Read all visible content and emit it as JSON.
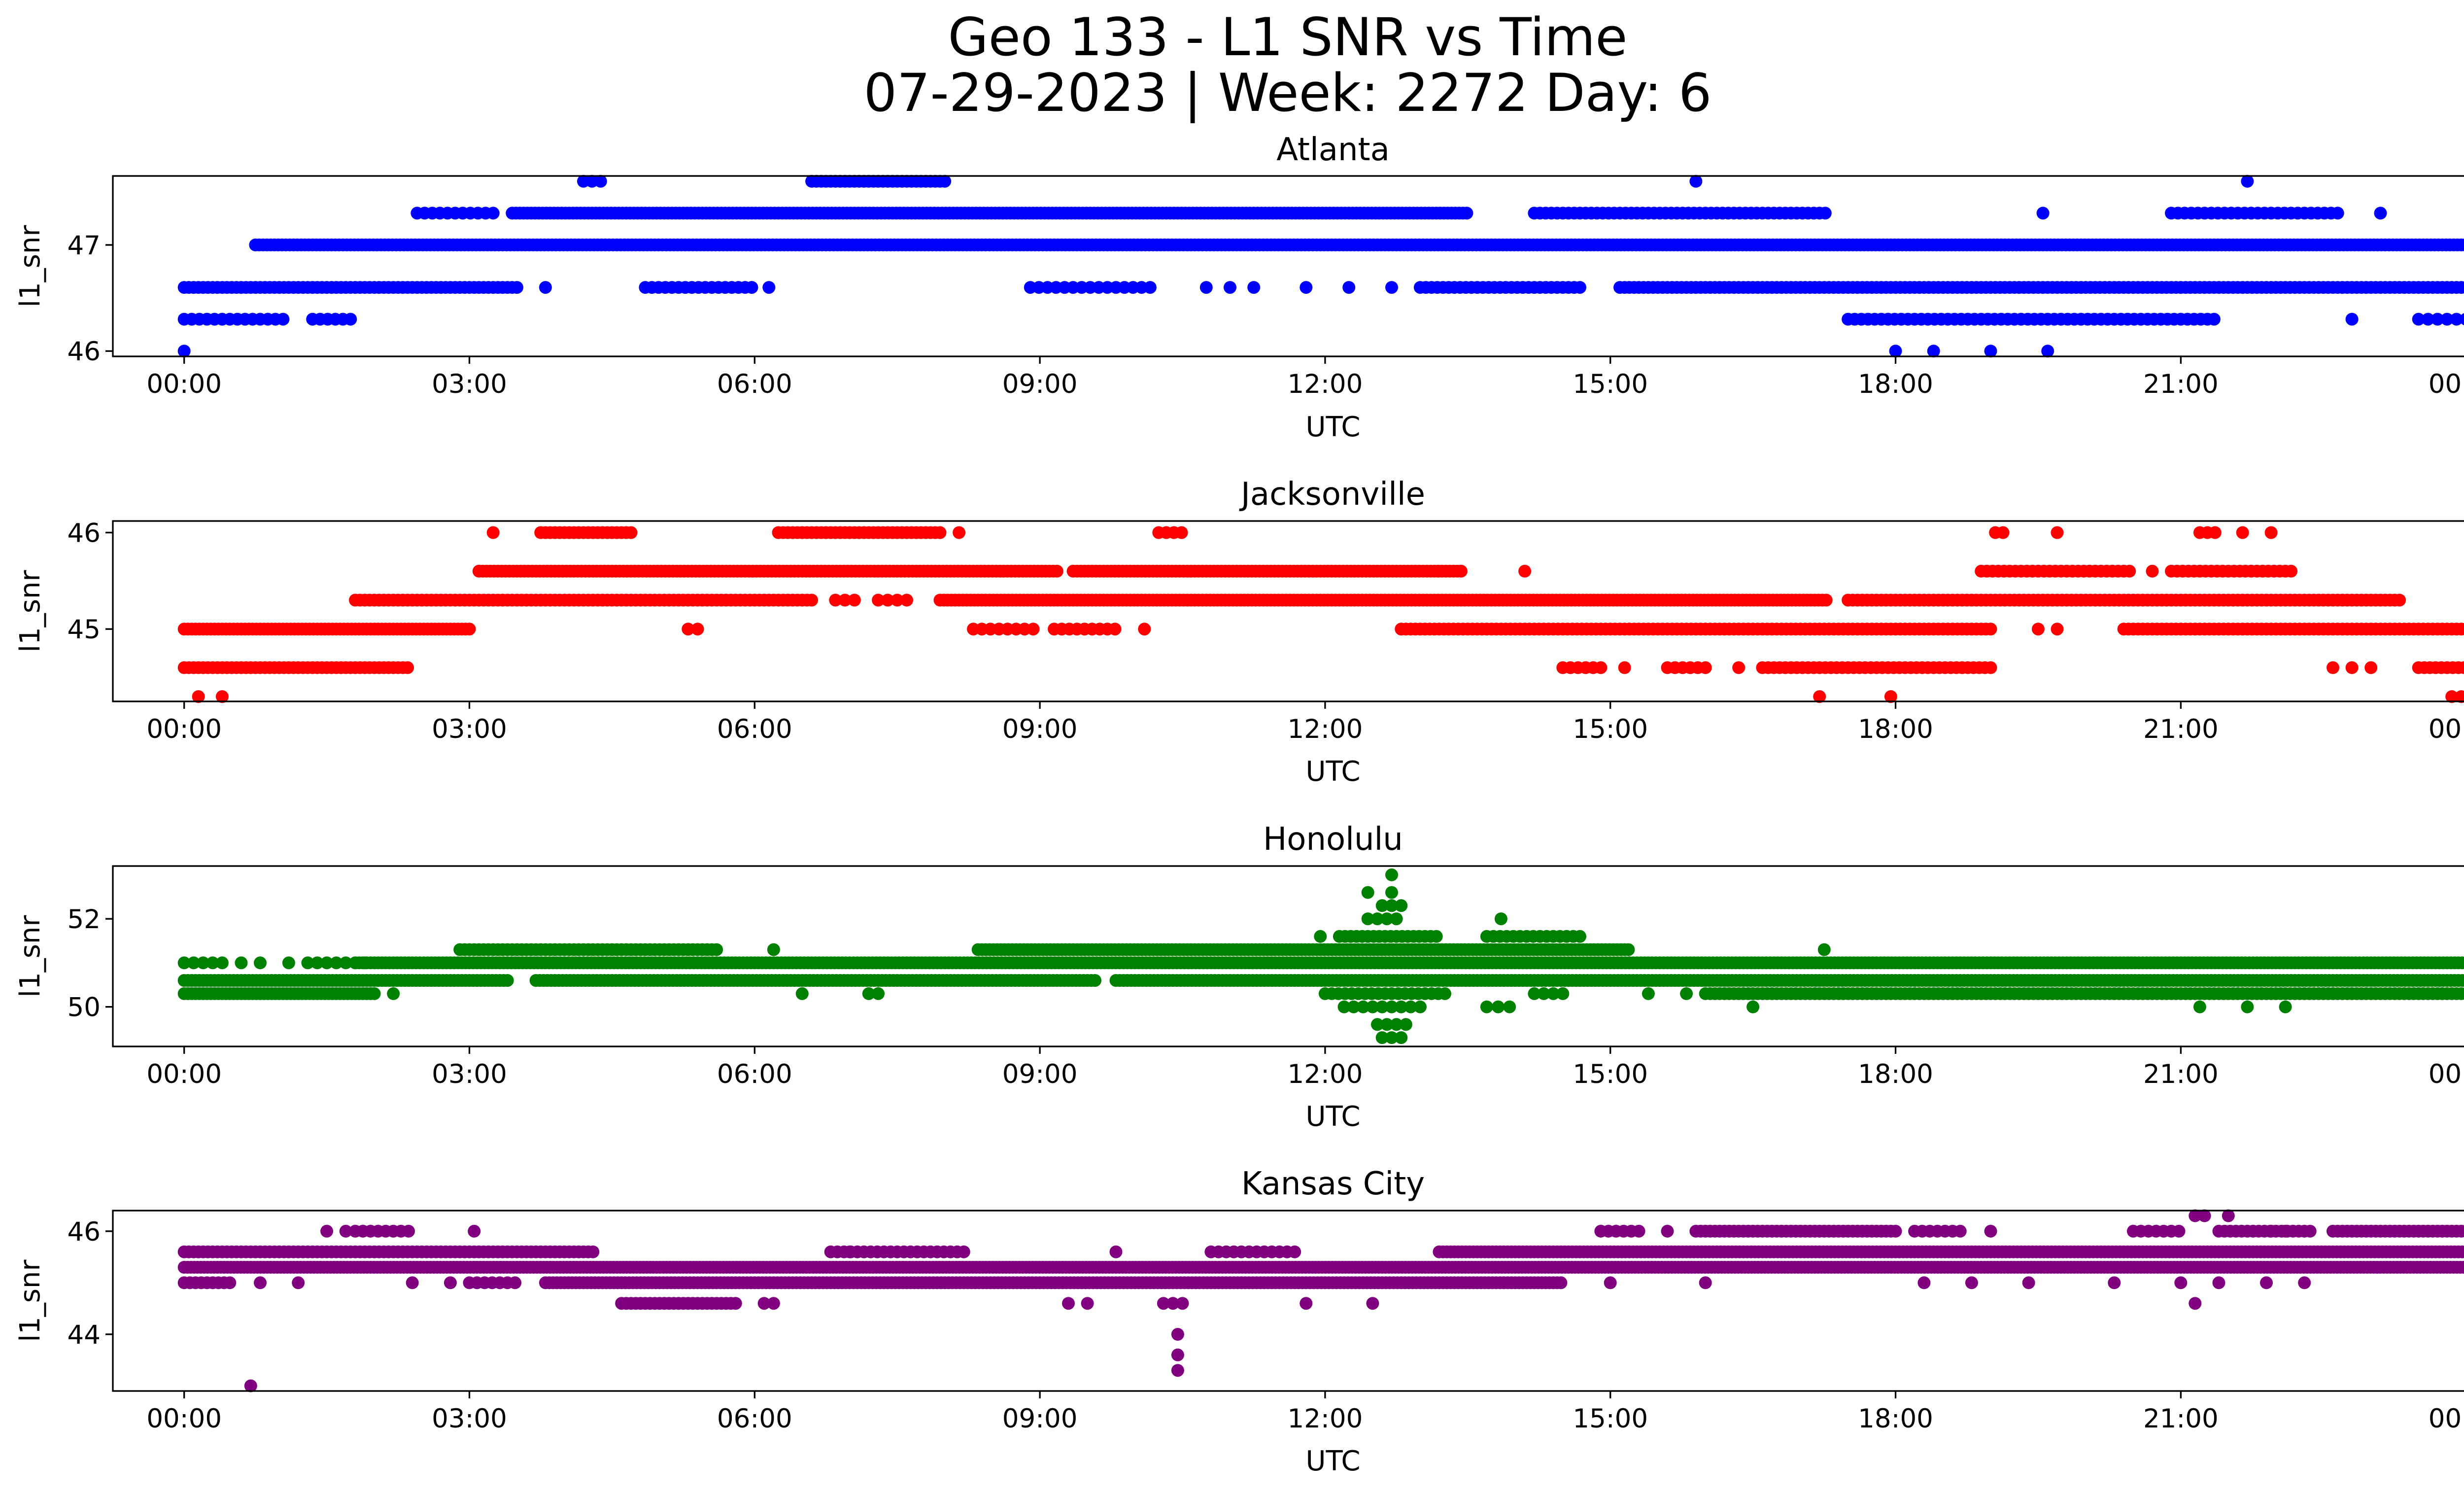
{
  "figure": {
    "title_line1": "Geo 133 - L1 SNR vs Time",
    "title_line2": "07-29-2023 | Week: 2272 Day: 6"
  },
  "chart_data": [
    {
      "type": "scatter",
      "title": "Atlanta",
      "xlabel": "UTC",
      "ylabel": "l1_snr",
      "color": "#0000ff",
      "xlim": [
        "23:15",
        "24:55"
      ],
      "ylim": [
        45.95,
        47.65
      ],
      "yticks": [
        46,
        47
      ],
      "ytick_labels": [
        "46",
        "47"
      ],
      "xtick_labels": [
        "00:00",
        "03:00",
        "06:00",
        "09:00",
        "12:00",
        "15:00",
        "18:00",
        "21:00",
        "00:00"
      ],
      "levels": [
        {
          "y": 46.0,
          "spans": [
            [
              0.0,
              0.1,
              0.15
            ]
          ],
          "points": [
            18.0,
            18.4,
            19.0,
            19.6
          ]
        },
        {
          "y": 46.3,
          "spans": [
            [
              0.0,
              1.1,
              0.08
            ],
            [
              1.35,
              1.8,
              0.08
            ],
            [
              17.5,
              21.4,
              0.07
            ],
            [
              23.5,
              24.0,
              0.1
            ]
          ],
          "points": [
            22.8
          ]
        },
        {
          "y": 46.6,
          "spans": [
            [
              0.0,
              3.5,
              0.05
            ],
            [
              4.85,
              6.0,
              0.07
            ],
            [
              8.9,
              10.2,
              0.09
            ],
            [
              13.0,
              14.7,
              0.06
            ],
            [
              15.1,
              24.0,
              0.05
            ]
          ],
          "points": [
            3.8,
            6.15,
            10.75,
            11.0,
            11.25,
            11.8,
            12.25,
            12.7
          ]
        },
        {
          "y": 47.0,
          "spans": [
            [
              0.75,
              24.0,
              0.04
            ]
          ],
          "points": []
        },
        {
          "y": 47.3,
          "spans": [
            [
              2.45,
              3.3,
              0.08
            ],
            [
              3.45,
              13.5,
              0.04
            ],
            [
              14.2,
              17.3,
              0.06
            ],
            [
              20.9,
              22.7,
              0.07
            ]
          ],
          "points": [
            19.55,
            23.1
          ]
        },
        {
          "y": 47.6,
          "spans": [
            [
              4.2,
              4.45,
              0.09
            ],
            [
              6.6,
              8.0,
              0.05
            ]
          ],
          "points": [
            15.9,
            21.7
          ]
        }
      ]
    },
    {
      "type": "scatter",
      "title": "Jacksonville",
      "xlabel": "UTC",
      "ylabel": "l1_snr",
      "color": "#ff0000",
      "xlim": [
        "23:15",
        "24:55"
      ],
      "ylim": [
        44.25,
        46.12
      ],
      "yticks": [
        45,
        46
      ],
      "ytick_labels": [
        "45",
        "46"
      ],
      "xtick_labels": [
        "00:00",
        "03:00",
        "06:00",
        "09:00",
        "12:00",
        "15:00",
        "18:00",
        "21:00",
        "00:00"
      ],
      "levels": [
        {
          "y": 44.3,
          "spans": [
            [
              23.85,
              23.95,
              0.1
            ]
          ],
          "points": [
            0.15,
            0.4,
            17.2,
            17.95
          ]
        },
        {
          "y": 44.6,
          "spans": [
            [
              0.0,
              2.35,
              0.05
            ],
            [
              14.5,
              14.9,
              0.08
            ],
            [
              15.6,
              16.0,
              0.08
            ],
            [
              16.6,
              19.0,
              0.06
            ],
            [
              23.5,
              24.0,
              0.06
            ]
          ],
          "points": [
            15.15,
            16.35,
            22.6,
            22.8,
            23.0
          ]
        },
        {
          "y": 45.0,
          "spans": [
            [
              0.0,
              3.0,
              0.04
            ],
            [
              5.3,
              5.45,
              0.1
            ],
            [
              8.3,
              9.0,
              0.09
            ],
            [
              9.15,
              9.8,
              0.08
            ],
            [
              12.8,
              19.0,
              0.05
            ],
            [
              20.4,
              24.0,
              0.05
            ]
          ],
          "points": [
            10.1,
            19.5,
            19.7
          ]
        },
        {
          "y": 45.3,
          "spans": [
            [
              1.8,
              6.6,
              0.05
            ],
            [
              6.85,
              7.05,
              0.1
            ],
            [
              7.3,
              7.6,
              0.1
            ],
            [
              7.95,
              17.3,
              0.04
            ],
            [
              17.5,
              23.3,
              0.05
            ]
          ],
          "points": []
        },
        {
          "y": 45.6,
          "spans": [
            [
              3.1,
              9.2,
              0.04
            ],
            [
              9.35,
              13.45,
              0.04
            ],
            [
              18.9,
              20.5,
              0.06
            ],
            [
              20.9,
              22.2,
              0.06
            ]
          ],
          "points": [
            14.1,
            20.7
          ]
        },
        {
          "y": 46.0,
          "spans": [
            [
              3.75,
              4.7,
              0.05
            ],
            [
              6.25,
              7.95,
              0.05
            ],
            [
              10.25,
              10.5,
              0.08
            ],
            [
              19.05,
              19.2,
              0.08
            ],
            [
              21.2,
              21.4,
              0.08
            ]
          ],
          "points": [
            3.25,
            8.15,
            19.7,
            21.65,
            21.95
          ]
        }
      ]
    },
    {
      "type": "scatter",
      "title": "Honolulu",
      "xlabel": "UTC",
      "ylabel": "l1_snr",
      "color": "#008000",
      "xlim": [
        "23:15",
        "24:55"
      ],
      "ylim": [
        49.1,
        53.2
      ],
      "yticks": [
        50,
        52
      ],
      "ytick_labels": [
        "50",
        "52"
      ],
      "xtick_labels": [
        "00:00",
        "03:00",
        "06:00",
        "09:00",
        "12:00",
        "15:00",
        "18:00",
        "21:00",
        "00:00"
      ],
      "levels": [
        {
          "y": 49.3,
          "spans": [
            [
              12.6,
              12.8,
              0.1
            ]
          ],
          "points": []
        },
        {
          "y": 49.6,
          "spans": [
            [
              12.55,
              12.85,
              0.1
            ]
          ],
          "points": []
        },
        {
          "y": 50.0,
          "spans": [
            [
              12.2,
              13.0,
              0.1
            ],
            [
              13.7,
              14.0,
              0.12
            ]
          ],
          "points": [
            16.5,
            21.2,
            22.1,
            21.7
          ]
        },
        {
          "y": 50.3,
          "spans": [
            [
              0.0,
              2.0,
              0.04
            ],
            [
              12.0,
              13.3,
              0.07
            ],
            [
              14.2,
              14.5,
              0.1
            ],
            [
              16.0,
              24.0,
              0.05
            ]
          ],
          "points": [
            2.2,
            6.5,
            7.2,
            7.3,
            15.4,
            15.8
          ]
        },
        {
          "y": 50.6,
          "spans": [
            [
              0.0,
              3.4,
              0.04
            ],
            [
              3.7,
              9.6,
              0.04
            ],
            [
              9.8,
              24.0,
              0.04
            ]
          ],
          "points": []
        },
        {
          "y": 51.0,
          "spans": [
            [
              0.0,
              0.4,
              0.1
            ],
            [
              1.3,
              1.9,
              0.1
            ],
            [
              1.8,
              24.0,
              0.04
            ]
          ],
          "points": [
            0.6,
            0.8,
            1.1
          ]
        },
        {
          "y": 51.3,
          "spans": [
            [
              2.9,
              5.6,
              0.05
            ],
            [
              8.35,
              15.2,
              0.04
            ]
          ],
          "points": [
            6.2,
            17.25
          ]
        },
        {
          "y": 51.6,
          "spans": [
            [
              12.15,
              13.2,
              0.06
            ],
            [
              13.7,
              14.7,
              0.07
            ]
          ],
          "points": [
            11.95
          ]
        },
        {
          "y": 52.0,
          "spans": [
            [
              12.45,
              12.75,
              0.1
            ]
          ],
          "points": [
            13.85
          ]
        },
        {
          "y": 52.3,
          "spans": [
            [
              12.6,
              12.8,
              0.1
            ]
          ],
          "points": []
        },
        {
          "y": 52.6,
          "spans": [],
          "points": [
            12.45,
            12.7
          ]
        },
        {
          "y": 53.0,
          "spans": [],
          "points": [
            12.7
          ]
        }
      ]
    },
    {
      "type": "scatter",
      "title": "Kansas City",
      "xlabel": "UTC",
      "ylabel": "l1_snr",
      "color": "#800080",
      "xlim": [
        "23:15",
        "24:55"
      ],
      "ylim": [
        42.9,
        46.4
      ],
      "yticks": [
        44,
        46
      ],
      "ytick_labels": [
        "44",
        "46"
      ],
      "xtick_labels": [
        "00:00",
        "03:00",
        "06:00",
        "09:00",
        "12:00",
        "15:00",
        "18:00",
        "21:00",
        "00:00"
      ],
      "levels": [
        {
          "y": 43.0,
          "spans": [],
          "points": [
            0.7
          ]
        },
        {
          "y": 43.3,
          "spans": [],
          "points": [
            10.45
          ]
        },
        {
          "y": 43.6,
          "spans": [],
          "points": [
            10.45
          ]
        },
        {
          "y": 44.0,
          "spans": [],
          "points": [
            10.45
          ]
        },
        {
          "y": 44.6,
          "spans": [
            [
              4.6,
              5.8,
              0.05
            ],
            [
              10.3,
              10.5,
              0.1
            ]
          ],
          "points": [
            6.1,
            6.2,
            9.3,
            9.5,
            11.8,
            12.5,
            21.15
          ]
        },
        {
          "y": 45.0,
          "spans": [
            [
              0.0,
              0.5,
              0.06
            ],
            [
              3.0,
              3.5,
              0.08
            ],
            [
              3.8,
              14.5,
              0.04
            ]
          ],
          "points": [
            0.8,
            1.2,
            2.4,
            2.8,
            15.0,
            16.0,
            18.3,
            18.8,
            19.4,
            20.3,
            21.0,
            21.4,
            21.9,
            22.3
          ]
        },
        {
          "y": 45.3,
          "spans": [
            [
              0.0,
              24.0,
              0.035
            ]
          ],
          "points": []
        },
        {
          "y": 45.6,
          "spans": [
            [
              0.0,
              4.3,
              0.05
            ],
            [
              6.8,
              8.2,
              0.07
            ],
            [
              10.8,
              11.7,
              0.08
            ],
            [
              13.2,
              24.0,
              0.04
            ]
          ],
          "points": [
            7.0,
            9.8
          ]
        },
        {
          "y": 46.0,
          "spans": [
            [
              1.8,
              2.4,
              0.08
            ],
            [
              14.9,
              15.3,
              0.08
            ],
            [
              15.9,
              18.0,
              0.05
            ],
            [
              18.2,
              18.7,
              0.08
            ],
            [
              20.5,
              21.0,
              0.08
            ],
            [
              21.4,
              22.4,
              0.06
            ],
            [
              22.6,
              24.0,
              0.05
            ]
          ],
          "points": [
            1.5,
            1.7,
            3.05,
            15.6,
            19.0,
            21.95,
            22.1
          ]
        },
        {
          "y": 46.3,
          "spans": [],
          "points": [
            21.15,
            21.25,
            21.5
          ]
        }
      ]
    }
  ]
}
